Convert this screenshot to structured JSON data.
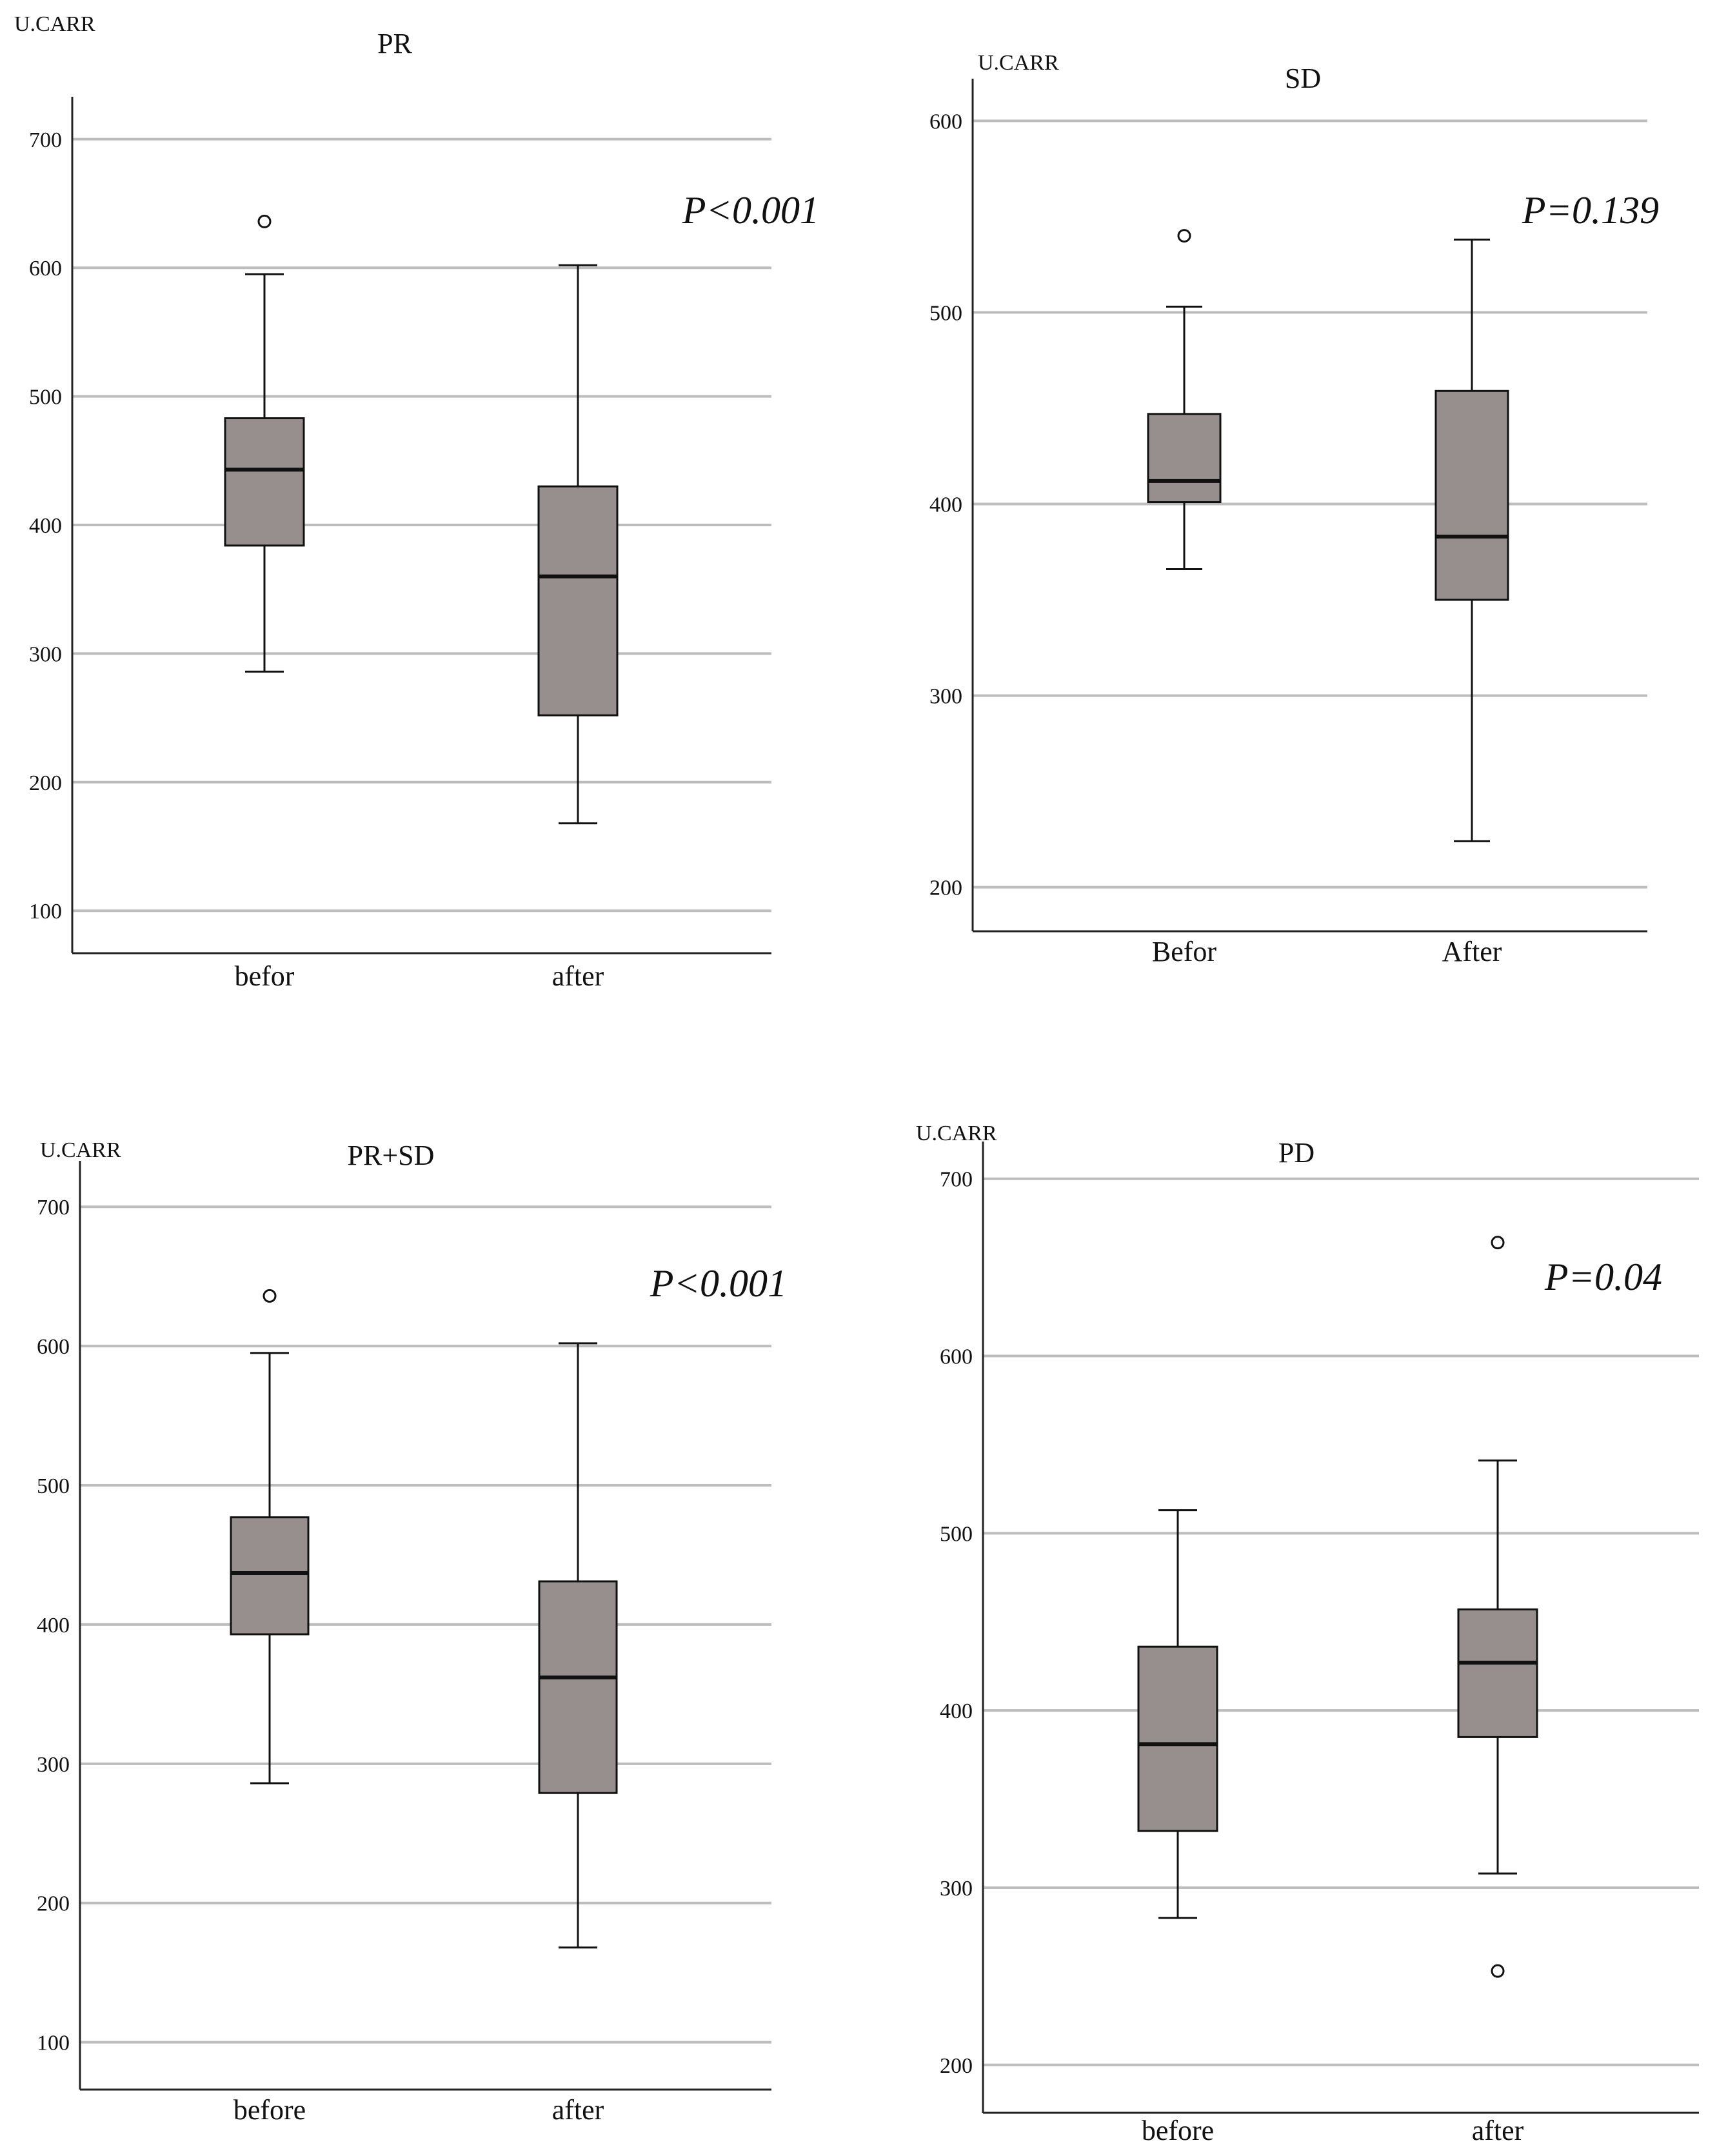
{
  "colors": {
    "box": "#968f8d",
    "grid": "#bdbdbd",
    "axis": "#222222",
    "line": "#111111"
  },
  "chart_data": [
    {
      "id": "pr",
      "type": "box",
      "title": "PR",
      "ylabel": "U.CARR",
      "pvalue": "P<0.001",
      "ylim": [
        67,
        733
      ],
      "yticks": [
        100,
        200,
        300,
        400,
        500,
        600,
        700
      ],
      "categories": [
        "befor",
        "after"
      ],
      "boxes": [
        {
          "min": 286,
          "q1": 384,
          "median": 443,
          "q3": 483,
          "max": 595,
          "outliers": [
            636
          ]
        },
        {
          "min": 168,
          "q1": 252,
          "median": 360,
          "q3": 430,
          "max": 602,
          "outliers": []
        }
      ]
    },
    {
      "id": "sd",
      "type": "box",
      "title": "SD",
      "ylabel": "U.CARR",
      "pvalue": "P=0.139",
      "ylim": [
        177,
        622
      ],
      "yticks": [
        200,
        300,
        400,
        500,
        600
      ],
      "categories": [
        "Befor",
        "After"
      ],
      "boxes": [
        {
          "min": 366,
          "q1": 401,
          "median": 412,
          "q3": 447,
          "max": 503,
          "outliers": [
            540
          ]
        },
        {
          "min": 224,
          "q1": 350,
          "median": 383,
          "q3": 459,
          "max": 538,
          "outliers": []
        }
      ]
    },
    {
      "id": "prsd",
      "type": "box",
      "title": "PR+SD",
      "ylabel": "U.CARR",
      "pvalue": "P<0.001",
      "ylim": [
        66,
        733
      ],
      "yticks": [
        100,
        200,
        300,
        400,
        500,
        600,
        700
      ],
      "categories": [
        "before",
        "after"
      ],
      "boxes": [
        {
          "min": 286,
          "q1": 393,
          "median": 437,
          "q3": 477,
          "max": 595,
          "outliers": [
            636
          ]
        },
        {
          "min": 168,
          "q1": 279,
          "median": 362,
          "q3": 431,
          "max": 602,
          "outliers": []
        }
      ]
    },
    {
      "id": "pd",
      "type": "box",
      "title": "PD",
      "ylabel": "U.CARR",
      "pvalue": "P=0.04",
      "ylim": [
        173,
        721
      ],
      "yticks": [
        200,
        300,
        400,
        500,
        600,
        700
      ],
      "categories": [
        "before",
        "after"
      ],
      "boxes": [
        {
          "min": 283,
          "q1": 332,
          "median": 381,
          "q3": 436,
          "max": 513,
          "outliers": []
        },
        {
          "min": 308,
          "q1": 385,
          "median": 427,
          "q3": 457,
          "max": 541,
          "outliers": [
            664,
            253
          ]
        }
      ]
    }
  ]
}
